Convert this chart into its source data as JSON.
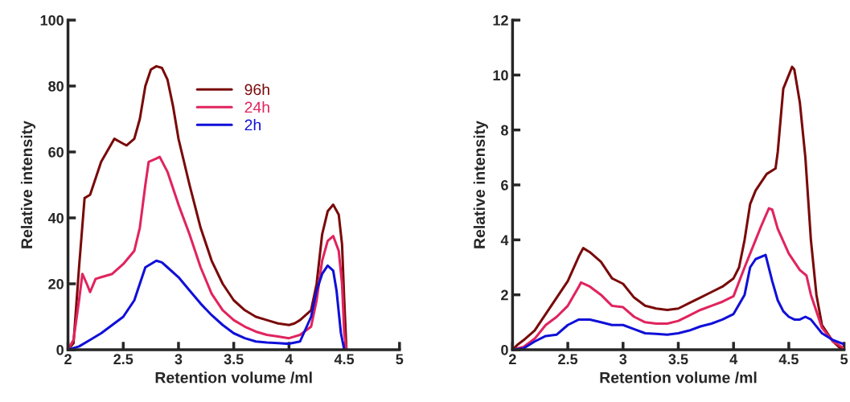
{
  "chart_data": [
    {
      "type": "line",
      "xlabel": "Retention volume /ml",
      "ylabel": "Relative intensity",
      "xlim": [
        2,
        5
      ],
      "xticks": [
        2,
        2.5,
        3,
        3.5,
        4,
        4.5,
        5
      ],
      "ylim": [
        0,
        100
      ],
      "yticks": [
        0,
        20,
        40,
        60,
        80,
        100
      ],
      "grid": false,
      "legend": "top",
      "marker": "none",
      "line_style": "solid",
      "series": [
        {
          "name": "96h",
          "color": "#7a0a0a",
          "x": [
            2.0,
            2.05,
            2.1,
            2.15,
            2.2,
            2.3,
            2.42,
            2.5,
            2.53,
            2.6,
            2.65,
            2.7,
            2.75,
            2.8,
            2.85,
            2.9,
            2.95,
            3.0,
            3.1,
            3.2,
            3.3,
            3.4,
            3.5,
            3.6,
            3.7,
            3.8,
            3.9,
            4.0,
            4.05,
            4.1,
            4.2,
            4.25,
            4.3,
            4.35,
            4.4,
            4.45,
            4.48,
            4.5,
            4.52
          ],
          "values": [
            0,
            2,
            25,
            46,
            47,
            57,
            64,
            62.5,
            62,
            64,
            70,
            80,
            85,
            86,
            85.5,
            82,
            74,
            64,
            50,
            37,
            27,
            20,
            15,
            12,
            10,
            9,
            8,
            7.5,
            8,
            9,
            12,
            20,
            35,
            42,
            44,
            41,
            32,
            15,
            0
          ]
        },
        {
          "name": "24h",
          "color": "#e0245e",
          "x": [
            2.0,
            2.05,
            2.1,
            2.13,
            2.17,
            2.2,
            2.25,
            2.3,
            2.4,
            2.5,
            2.6,
            2.65,
            2.7,
            2.73,
            2.8,
            2.83,
            2.9,
            3.0,
            3.1,
            3.2,
            3.3,
            3.4,
            3.5,
            3.6,
            3.7,
            3.8,
            3.9,
            4.0,
            4.1,
            4.2,
            4.25,
            4.3,
            4.35,
            4.4,
            4.45,
            4.48,
            4.5,
            4.52
          ],
          "values": [
            0,
            3,
            15,
            23,
            20,
            17.5,
            21.5,
            22,
            23,
            26,
            30,
            37,
            50,
            57,
            58,
            58.5,
            54,
            44,
            35,
            25,
            17,
            12,
            9,
            7,
            5.5,
            4.5,
            4,
            3.5,
            4.5,
            7,
            15,
            27,
            33,
            34.5,
            30,
            20,
            5,
            0
          ]
        },
        {
          "name": "2h",
          "color": "#1010d8",
          "x": [
            2.0,
            2.1,
            2.2,
            2.3,
            2.4,
            2.5,
            2.6,
            2.65,
            2.7,
            2.8,
            2.85,
            2.9,
            3.0,
            3.1,
            3.2,
            3.3,
            3.4,
            3.5,
            3.6,
            3.7,
            3.8,
            3.9,
            4.0,
            4.1,
            4.2,
            4.25,
            4.3,
            4.35,
            4.4,
            4.43,
            4.47,
            4.5
          ],
          "values": [
            0,
            1,
            3,
            5,
            7.5,
            10,
            15,
            20,
            25,
            27,
            26.5,
            25,
            22,
            18,
            14,
            10.5,
            7.5,
            5,
            3.5,
            2.5,
            2.2,
            2,
            1.8,
            2.5,
            10,
            18,
            23,
            25.5,
            24,
            18,
            5,
            0
          ]
        }
      ]
    },
    {
      "type": "line",
      "xlabel": "Retention volume /ml",
      "ylabel": "Relative intensity",
      "xlim": [
        2,
        5
      ],
      "xticks": [
        2,
        2.5,
        3,
        3.5,
        4,
        4.5,
        5
      ],
      "ylim": [
        0,
        12
      ],
      "yticks": [
        0,
        2,
        4,
        6,
        8,
        10,
        12
      ],
      "grid": false,
      "legend": false,
      "marker": "none",
      "line_style": "solid",
      "series": [
        {
          "color": "#7a0a0a",
          "x": [
            2.0,
            2.05,
            2.1,
            2.2,
            2.3,
            2.4,
            2.5,
            2.6,
            2.64,
            2.7,
            2.8,
            2.9,
            3.0,
            3.1,
            3.2,
            3.3,
            3.4,
            3.5,
            3.6,
            3.7,
            3.8,
            3.9,
            4.0,
            4.05,
            4.1,
            4.15,
            4.2,
            4.3,
            4.38,
            4.4,
            4.45,
            4.53,
            4.55,
            4.6,
            4.65,
            4.7,
            4.75,
            4.8,
            4.9,
            4.98
          ],
          "values": [
            0,
            0.2,
            0.35,
            0.7,
            1.3,
            1.9,
            2.5,
            3.4,
            3.7,
            3.55,
            3.2,
            2.6,
            2.4,
            1.9,
            1.6,
            1.5,
            1.45,
            1.5,
            1.7,
            1.9,
            2.1,
            2.3,
            2.6,
            3.0,
            4.0,
            5.3,
            5.8,
            6.4,
            6.6,
            7.2,
            9.5,
            10.3,
            10.2,
            9,
            7,
            4,
            2,
            0.9,
            0.3,
            0
          ]
        },
        {
          "color": "#e0245e",
          "x": [
            2.0,
            2.1,
            2.2,
            2.3,
            2.4,
            2.5,
            2.6,
            2.62,
            2.7,
            2.8,
            2.9,
            3.0,
            3.1,
            3.2,
            3.3,
            3.4,
            3.5,
            3.6,
            3.7,
            3.8,
            3.9,
            4.0,
            4.1,
            4.2,
            4.25,
            4.32,
            4.35,
            4.4,
            4.5,
            4.6,
            4.66,
            4.7,
            4.8,
            4.9,
            5.0
          ],
          "values": [
            0,
            0.1,
            0.4,
            0.9,
            1.2,
            1.6,
            2.3,
            2.45,
            2.3,
            2.0,
            1.6,
            1.55,
            1.2,
            1.0,
            0.95,
            0.95,
            1.05,
            1.25,
            1.45,
            1.6,
            1.75,
            1.95,
            3.0,
            4.0,
            4.5,
            5.15,
            5.1,
            4.4,
            3.5,
            2.9,
            2.7,
            2.0,
            0.8,
            0.3,
            0.05
          ]
        },
        {
          "color": "#1010d8",
          "x": [
            2.0,
            2.1,
            2.2,
            2.3,
            2.4,
            2.5,
            2.6,
            2.7,
            2.8,
            2.9,
            3.0,
            3.1,
            3.2,
            3.3,
            3.4,
            3.5,
            3.6,
            3.7,
            3.8,
            3.9,
            4.0,
            4.1,
            4.15,
            4.2,
            4.29,
            4.35,
            4.4,
            4.45,
            4.5,
            4.55,
            4.6,
            4.65,
            4.7,
            4.8,
            4.9,
            5.0
          ],
          "values": [
            0,
            0.05,
            0.3,
            0.5,
            0.55,
            0.9,
            1.1,
            1.1,
            1.0,
            0.9,
            0.9,
            0.75,
            0.6,
            0.58,
            0.55,
            0.6,
            0.7,
            0.85,
            0.95,
            1.1,
            1.3,
            2.0,
            3.0,
            3.3,
            3.45,
            2.5,
            1.8,
            1.4,
            1.2,
            1.1,
            1.1,
            1.2,
            1.1,
            0.6,
            0.35,
            0.2
          ]
        }
      ]
    }
  ]
}
